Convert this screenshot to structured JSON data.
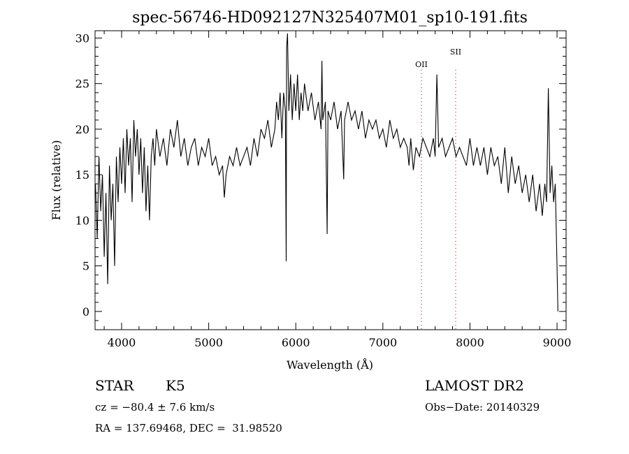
{
  "chart_data": {
    "type": "line",
    "title": "spec-56746-HD092127N325407M01_sp10-191.fits",
    "xlabel": "Wavelength (Å)",
    "ylabel": "Flux (relative)",
    "xlim": [
      3695,
      9104
    ],
    "ylim": [
      -2,
      30.8
    ],
    "xticks": [
      4000,
      5000,
      6000,
      7000,
      8000,
      9000
    ],
    "yticks": [
      0,
      5,
      10,
      15,
      20,
      25,
      30
    ],
    "grid": false,
    "line_markers": [
      {
        "label": "OII",
        "wavelength": 7443,
        "color": "#a03030"
      },
      {
        "label": "SII",
        "wavelength": 7836,
        "color": "#a03030"
      }
    ],
    "series": [
      {
        "name": "spectrum",
        "points": [
          [
            3700,
            14
          ],
          [
            3720,
            8
          ],
          [
            3740,
            17
          ],
          [
            3760,
            11
          ],
          [
            3780,
            15
          ],
          [
            3800,
            6
          ],
          [
            3820,
            13
          ],
          [
            3840,
            3
          ],
          [
            3860,
            16
          ],
          [
            3880,
            10
          ],
          [
            3900,
            14
          ],
          [
            3920,
            5
          ],
          [
            3940,
            17
          ],
          [
            3960,
            12
          ],
          [
            3980,
            18
          ],
          [
            4000,
            14
          ],
          [
            4020,
            19
          ],
          [
            4040,
            13
          ],
          [
            4060,
            20
          ],
          [
            4080,
            16
          ],
          [
            4100,
            19
          ],
          [
            4120,
            12
          ],
          [
            4140,
            21
          ],
          [
            4160,
            17
          ],
          [
            4180,
            20
          ],
          [
            4200,
            15
          ],
          [
            4220,
            19
          ],
          [
            4240,
            13
          ],
          [
            4260,
            18
          ],
          [
            4280,
            11
          ],
          [
            4300,
            16
          ],
          [
            4320,
            10
          ],
          [
            4340,
            17
          ],
          [
            4360,
            19
          ],
          [
            4380,
            16
          ],
          [
            4400,
            20
          ],
          [
            4440,
            17
          ],
          [
            4480,
            19
          ],
          [
            4520,
            16
          ],
          [
            4560,
            20
          ],
          [
            4600,
            18
          ],
          [
            4640,
            21
          ],
          [
            4680,
            17
          ],
          [
            4720,
            19
          ],
          [
            4760,
            16
          ],
          [
            4800,
            18
          ],
          [
            4840,
            19
          ],
          [
            4880,
            16
          ],
          [
            4920,
            18
          ],
          [
            4960,
            17
          ],
          [
            5000,
            19
          ],
          [
            5040,
            16
          ],
          [
            5080,
            17
          ],
          [
            5120,
            15
          ],
          [
            5160,
            16
          ],
          [
            5180,
            12.5
          ],
          [
            5200,
            15
          ],
          [
            5240,
            17
          ],
          [
            5280,
            16
          ],
          [
            5320,
            18
          ],
          [
            5360,
            16
          ],
          [
            5400,
            17
          ],
          [
            5440,
            18
          ],
          [
            5480,
            16
          ],
          [
            5520,
            19
          ],
          [
            5560,
            17
          ],
          [
            5600,
            20
          ],
          [
            5640,
            19
          ],
          [
            5680,
            21
          ],
          [
            5720,
            18
          ],
          [
            5760,
            20
          ],
          [
            5780,
            23
          ],
          [
            5800,
            21
          ],
          [
            5820,
            24
          ],
          [
            5840,
            19
          ],
          [
            5860,
            24
          ],
          [
            5880,
            22
          ],
          [
            5890,
            5.5
          ],
          [
            5895,
            29
          ],
          [
            5905,
            30.5
          ],
          [
            5920,
            22
          ],
          [
            5940,
            26
          ],
          [
            5960,
            21
          ],
          [
            5980,
            25
          ],
          [
            6000,
            22
          ],
          [
            6020,
            26
          ],
          [
            6040,
            21
          ],
          [
            6060,
            24
          ],
          [
            6080,
            22
          ],
          [
            6100,
            25
          ],
          [
            6140,
            22
          ],
          [
            6180,
            24
          ],
          [
            6220,
            21
          ],
          [
            6260,
            23
          ],
          [
            6290,
            20
          ],
          [
            6300,
            27.5
          ],
          [
            6310,
            21
          ],
          [
            6340,
            23
          ],
          [
            6360,
            8.5
          ],
          [
            6370,
            22
          ],
          [
            6400,
            21
          ],
          [
            6440,
            23
          ],
          [
            6480,
            20
          ],
          [
            6520,
            22
          ],
          [
            6550,
            14.5
          ],
          [
            6560,
            21
          ],
          [
            6600,
            23
          ],
          [
            6640,
            21
          ],
          [
            6680,
            22
          ],
          [
            6720,
            20
          ],
          [
            6760,
            22
          ],
          [
            6800,
            19
          ],
          [
            6840,
            21
          ],
          [
            6880,
            20
          ],
          [
            6920,
            21
          ],
          [
            6960,
            19
          ],
          [
            7000,
            20
          ],
          [
            7040,
            18
          ],
          [
            7080,
            21
          ],
          [
            7120,
            19
          ],
          [
            7160,
            20
          ],
          [
            7200,
            18
          ],
          [
            7240,
            19
          ],
          [
            7280,
            18
          ],
          [
            7300,
            16
          ],
          [
            7320,
            19
          ],
          [
            7350,
            15.5
          ],
          [
            7380,
            18
          ],
          [
            7420,
            17
          ],
          [
            7460,
            19
          ],
          [
            7500,
            18
          ],
          [
            7540,
            17
          ],
          [
            7580,
            19
          ],
          [
            7600,
            17
          ],
          [
            7620,
            26
          ],
          [
            7640,
            18
          ],
          [
            7680,
            19
          ],
          [
            7720,
            17
          ],
          [
            7760,
            18
          ],
          [
            7800,
            19
          ],
          [
            7840,
            17
          ],
          [
            7880,
            18
          ],
          [
            7920,
            17
          ],
          [
            7960,
            16
          ],
          [
            8000,
            19
          ],
          [
            8040,
            16
          ],
          [
            8080,
            18
          ],
          [
            8120,
            16
          ],
          [
            8160,
            18
          ],
          [
            8200,
            15
          ],
          [
            8240,
            18
          ],
          [
            8280,
            16
          ],
          [
            8320,
            17
          ],
          [
            8360,
            14
          ],
          [
            8400,
            18
          ],
          [
            8440,
            13
          ],
          [
            8480,
            17
          ],
          [
            8520,
            14
          ],
          [
            8560,
            16
          ],
          [
            8600,
            13
          ],
          [
            8640,
            15
          ],
          [
            8680,
            12
          ],
          [
            8720,
            15
          ],
          [
            8760,
            11
          ],
          [
            8800,
            14
          ],
          [
            8830,
            10.5
          ],
          [
            8860,
            14
          ],
          [
            8880,
            12
          ],
          [
            8900,
            24.5
          ],
          [
            8920,
            13
          ],
          [
            8940,
            16
          ],
          [
            8960,
            12
          ],
          [
            8980,
            14
          ],
          [
            9000,
            5
          ],
          [
            9010,
            0
          ]
        ]
      }
    ]
  },
  "info": {
    "object_class": "STAR",
    "subclass": "K5",
    "cz": "cz = −80.4 ± 7.6 km/s",
    "coords": "RA = 137.69468, DEC =  31.98520",
    "survey": "LAMOST DR2",
    "obs_date": "Obs−Date: 20140329"
  }
}
